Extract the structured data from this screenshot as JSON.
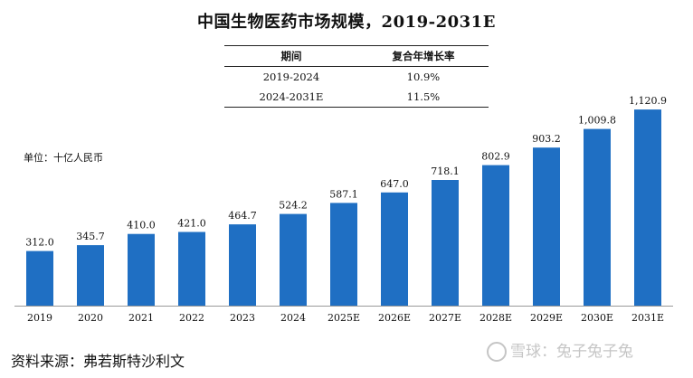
{
  "title": "中国生物医药市场规模，2019-2031E",
  "cagr_table": {
    "headers": [
      "期间",
      "复合年增长率"
    ],
    "rows": [
      [
        "2019-2024",
        "10.9%"
      ],
      [
        "2024-2031E",
        "11.5%"
      ]
    ]
  },
  "unit_label": "单位：十亿人民币",
  "source": "资料来源：弗若斯特沙利文",
  "watermark": "雪球：兔子兔子兔",
  "colors": {
    "bar": "#1f6fc3"
  },
  "chart_data": {
    "type": "bar",
    "title": "中国生物医药市场规模，2019-2031E",
    "categories": [
      "2019",
      "2020",
      "2021",
      "2022",
      "2023",
      "2024",
      "2025E",
      "2026E",
      "2027E",
      "2028E",
      "2029E",
      "2030E",
      "2031E"
    ],
    "values": [
      312.0,
      345.7,
      410.0,
      421.0,
      464.7,
      524.2,
      587.1,
      647.0,
      718.1,
      802.9,
      903.2,
      1009.8,
      1120.9
    ],
    "value_labels": [
      "312.0",
      "345.7",
      "410.0",
      "421.0",
      "464.7",
      "524.2",
      "587.1",
      "647.0",
      "718.1",
      "802.9",
      "903.2",
      "1,009.8",
      "1,120.9"
    ],
    "xlabel": "",
    "ylabel": "十亿人民币",
    "ylim": [
      0,
      1200
    ],
    "grid": false
  }
}
